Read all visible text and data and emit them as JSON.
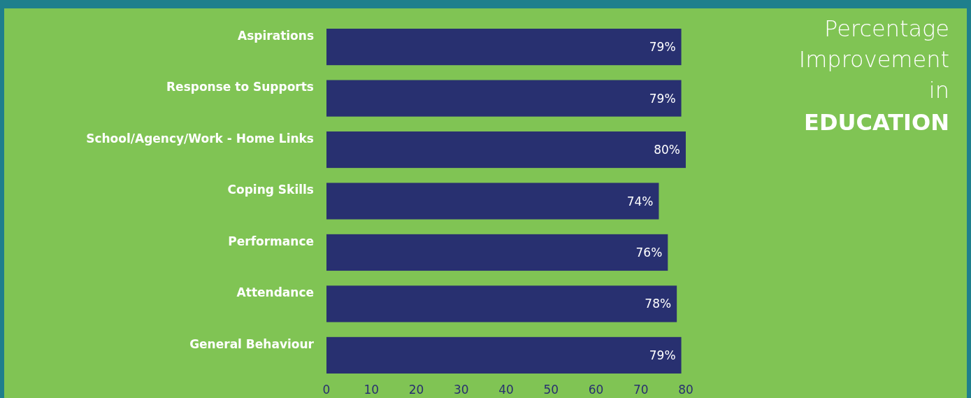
{
  "chart_data": {
    "type": "bar",
    "orientation": "horizontal",
    "title": "Percentage Improvement in",
    "subtitle": "EDUCATION",
    "categories": [
      "Aspirations",
      "Response to Supports",
      "School/Agency/Work - Home Links",
      "Coping Skills",
      "Performance",
      "Attendance",
      "General Behaviour"
    ],
    "values": [
      79,
      79,
      80,
      74,
      76,
      78,
      79
    ],
    "value_labels": [
      "79%",
      "79%",
      "80%",
      "74%",
      "76%",
      "78%",
      "79%"
    ],
    "color": "#283070",
    "xlim": [
      0,
      80
    ],
    "xticks": [
      0,
      10,
      20,
      30,
      40,
      50,
      60,
      70,
      80
    ],
    "grid": false
  }
}
